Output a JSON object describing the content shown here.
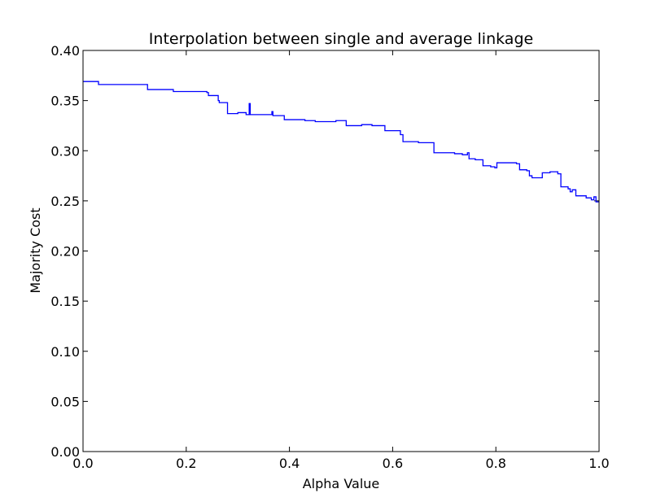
{
  "chart_data": {
    "type": "line",
    "title": "Interpolation between single and average linkage",
    "xlabel": "Alpha Value",
    "ylabel": "Majority Cost",
    "xlim": [
      0.0,
      1.0
    ],
    "ylim": [
      0.0,
      0.4
    ],
    "xticks": [
      "0.0",
      "0.2",
      "0.4",
      "0.6",
      "0.8",
      "1.0"
    ],
    "yticks": [
      "0.00",
      "0.05",
      "0.10",
      "0.15",
      "0.20",
      "0.25",
      "0.30",
      "0.35",
      "0.40"
    ],
    "grid": false,
    "legend": false,
    "color": "#0000ff",
    "series": [
      {
        "x": [
          0.0,
          0.03,
          0.03,
          0.125,
          0.125,
          0.175,
          0.175,
          0.24,
          0.24,
          0.243,
          0.243,
          0.262,
          0.262,
          0.264,
          0.264,
          0.266,
          0.266,
          0.28,
          0.28,
          0.288,
          0.288,
          0.3,
          0.3,
          0.316,
          0.316,
          0.322,
          0.322,
          0.324,
          0.324,
          0.366,
          0.366,
          0.368,
          0.368,
          0.39,
          0.39,
          0.43,
          0.43,
          0.45,
          0.45,
          0.47,
          0.47,
          0.49,
          0.49,
          0.51,
          0.51,
          0.54,
          0.54,
          0.56,
          0.56,
          0.585,
          0.585,
          0.615,
          0.615,
          0.62,
          0.62,
          0.65,
          0.65,
          0.68,
          0.68,
          0.72,
          0.72,
          0.735,
          0.735,
          0.745,
          0.745,
          0.748,
          0.748,
          0.76,
          0.76,
          0.775,
          0.775,
          0.79,
          0.79,
          0.798,
          0.798,
          0.802,
          0.802,
          0.84,
          0.84,
          0.846,
          0.846,
          0.86,
          0.86,
          0.865,
          0.865,
          0.87,
          0.87,
          0.89,
          0.89,
          0.905,
          0.905,
          0.92,
          0.92,
          0.926,
          0.926,
          0.94,
          0.94,
          0.944,
          0.944,
          0.948,
          0.948,
          0.955,
          0.955,
          0.975,
          0.975,
          0.985,
          0.985,
          0.99,
          0.99,
          0.994,
          0.994,
          1.0
        ],
        "y": [
          0.369,
          0.369,
          0.366,
          0.366,
          0.361,
          0.361,
          0.359,
          0.359,
          0.358,
          0.358,
          0.355,
          0.355,
          0.35,
          0.35,
          0.348,
          0.348,
          0.348,
          0.348,
          0.337,
          0.337,
          0.337,
          0.337,
          0.338,
          0.338,
          0.336,
          0.336,
          0.347,
          0.347,
          0.336,
          0.336,
          0.339,
          0.339,
          0.335,
          0.335,
          0.331,
          0.331,
          0.33,
          0.33,
          0.329,
          0.329,
          0.329,
          0.329,
          0.33,
          0.33,
          0.325,
          0.325,
          0.326,
          0.326,
          0.325,
          0.325,
          0.32,
          0.32,
          0.316,
          0.316,
          0.309,
          0.309,
          0.308,
          0.308,
          0.298,
          0.298,
          0.297,
          0.297,
          0.296,
          0.296,
          0.298,
          0.298,
          0.292,
          0.292,
          0.291,
          0.291,
          0.285,
          0.285,
          0.284,
          0.284,
          0.283,
          0.283,
          0.288,
          0.288,
          0.287,
          0.287,
          0.281,
          0.281,
          0.28,
          0.28,
          0.275,
          0.275,
          0.273,
          0.273,
          0.278,
          0.278,
          0.279,
          0.279,
          0.277,
          0.277,
          0.264,
          0.264,
          0.262,
          0.262,
          0.259,
          0.259,
          0.261,
          0.261,
          0.255,
          0.255,
          0.253,
          0.253,
          0.251,
          0.251,
          0.254,
          0.254,
          0.249,
          0.249
        ]
      }
    ]
  }
}
